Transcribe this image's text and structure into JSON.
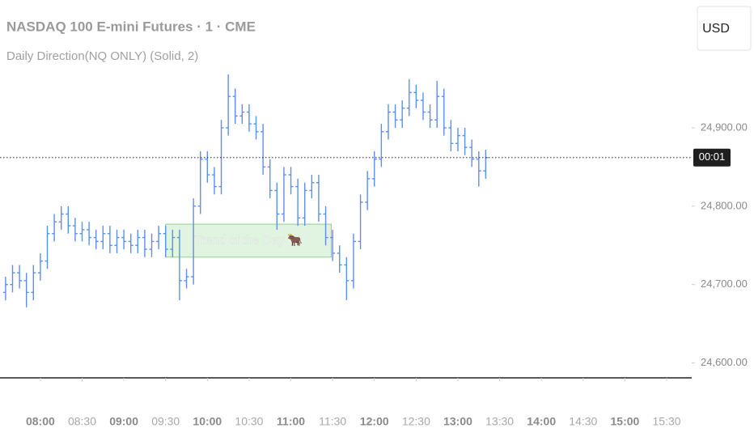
{
  "chart_data": {
    "type": "ohlc",
    "title": "NASDAQ 100 E-mini Futures · 1 · CME",
    "subtitle": "Daily Direction(NQ ONLY) (Solid, 2)",
    "currency": "USD",
    "countdown": "00:01",
    "color": "#5b8ff0",
    "x": [
      "07:35",
      "07:40",
      "07:45",
      "07:50",
      "07:55",
      "08:00",
      "08:05",
      "08:10",
      "08:15",
      "08:20",
      "08:25",
      "08:30",
      "08:35",
      "08:40",
      "08:45",
      "08:50",
      "08:55",
      "09:00",
      "09:05",
      "09:10",
      "09:15",
      "09:20",
      "09:25",
      "09:30",
      "09:35",
      "09:40",
      "09:45",
      "09:50",
      "09:55",
      "10:00",
      "10:05",
      "10:10",
      "10:15",
      "10:20",
      "10:25",
      "10:30",
      "10:35",
      "10:40",
      "10:45",
      "10:50",
      "10:55",
      "11:00",
      "11:05",
      "11:10",
      "11:15",
      "11:20",
      "11:25",
      "11:30",
      "11:35",
      "11:40",
      "11:45",
      "11:50",
      "11:55",
      "12:00",
      "12:05",
      "12:10",
      "12:15",
      "12:20",
      "12:25",
      "12:30",
      "12:35",
      "12:40",
      "12:45",
      "12:50",
      "12:55",
      "13:00",
      "13:05",
      "13:10",
      "13:15",
      "13:20"
    ],
    "open": [
      24690,
      24700,
      24715,
      24705,
      24690,
      24715,
      24730,
      24765,
      24780,
      24790,
      24775,
      24765,
      24770,
      24760,
      24755,
      24765,
      24750,
      24760,
      24755,
      24750,
      24760,
      24745,
      24755,
      24765,
      24745,
      24760,
      24705,
      24710,
      24800,
      24860,
      24840,
      24825,
      24900,
      24940,
      24915,
      24920,
      24905,
      24895,
      24850,
      24820,
      24790,
      24840,
      24825,
      24785,
      24820,
      24830,
      24790,
      24760,
      24740,
      24725,
      24705,
      24755,
      24805,
      24835,
      24860,
      24895,
      24920,
      24910,
      24925,
      24945,
      24935,
      24920,
      24910,
      24940,
      24900,
      24880,
      24890,
      24875,
      24860,
      24845
    ],
    "high": [
      24710,
      24725,
      24725,
      24715,
      24725,
      24740,
      24775,
      24790,
      24800,
      24800,
      24785,
      24780,
      24780,
      24770,
      24775,
      24775,
      24770,
      24770,
      24765,
      24770,
      24770,
      24765,
      24775,
      24775,
      24770,
      24770,
      24720,
      24810,
      24870,
      24870,
      24850,
      24910,
      24968,
      24950,
      24930,
      24930,
      24915,
      24905,
      24860,
      24830,
      24850,
      24850,
      24835,
      24830,
      24840,
      24840,
      24800,
      24770,
      24750,
      24735,
      24765,
      24815,
      24845,
      24870,
      24905,
      24930,
      24930,
      24935,
      24962,
      24955,
      24945,
      24930,
      24960,
      24950,
      24910,
      24900,
      24900,
      24885,
      24870,
      24872
    ],
    "low": [
      24680,
      24690,
      24695,
      24671,
      24680,
      24705,
      24720,
      24755,
      24770,
      24765,
      24755,
      24755,
      24750,
      24745,
      24745,
      24740,
      24740,
      24745,
      24740,
      24740,
      24735,
      24735,
      24745,
      24735,
      24735,
      24680,
      24695,
      24700,
      24790,
      24830,
      24815,
      24815,
      24890,
      24905,
      24905,
      24895,
      24885,
      24840,
      24810,
      24770,
      24780,
      24815,
      24775,
      24775,
      24810,
      24780,
      24750,
      24730,
      24715,
      24680,
      24695,
      24745,
      24795,
      24825,
      24850,
      24885,
      24900,
      24900,
      24915,
      24925,
      24910,
      24900,
      24900,
      24890,
      24870,
      24870,
      24865,
      24850,
      24825,
      24835
    ],
    "close": [
      24700,
      24715,
      24705,
      24690,
      24715,
      24730,
      24765,
      24780,
      24790,
      24775,
      24765,
      24770,
      24760,
      24755,
      24765,
      24750,
      24760,
      24755,
      24750,
      24760,
      24745,
      24755,
      24765,
      24745,
      24760,
      24705,
      24710,
      24800,
      24860,
      24840,
      24825,
      24900,
      24940,
      24915,
      24920,
      24905,
      24895,
      24850,
      24820,
      24790,
      24840,
      24825,
      24785,
      24820,
      24830,
      24790,
      24760,
      24740,
      24725,
      24705,
      24755,
      24805,
      24835,
      24860,
      24895,
      24920,
      24910,
      24925,
      24945,
      24935,
      24920,
      24910,
      24940,
      24900,
      24880,
      24890,
      24875,
      24860,
      24845,
      24862
    ],
    "xlim": [
      "07:31",
      "15:48"
    ],
    "xticks": [
      "08:00",
      "08:30",
      "09:00",
      "09:30",
      "10:00",
      "10:30",
      "11:00",
      "11:30",
      "12:00",
      "12:30",
      "13:00",
      "13:30",
      "14:00",
      "14:30",
      "15:00",
      "15:30"
    ],
    "ylim": [
      24581,
      25063
    ],
    "yticks": [
      {
        "value": 24600,
        "label": "24,600.00"
      },
      {
        "value": 24700,
        "label": "24,700.00"
      },
      {
        "value": 24800,
        "label": "24,800.00"
      },
      {
        "value": 24900,
        "label": "24,900.00"
      }
    ],
    "annotation": {
      "text": "Trend of the Day 🐂",
      "x": [
        "09:30",
        "11:29"
      ],
      "y": [
        24735,
        24777
      ]
    }
  }
}
